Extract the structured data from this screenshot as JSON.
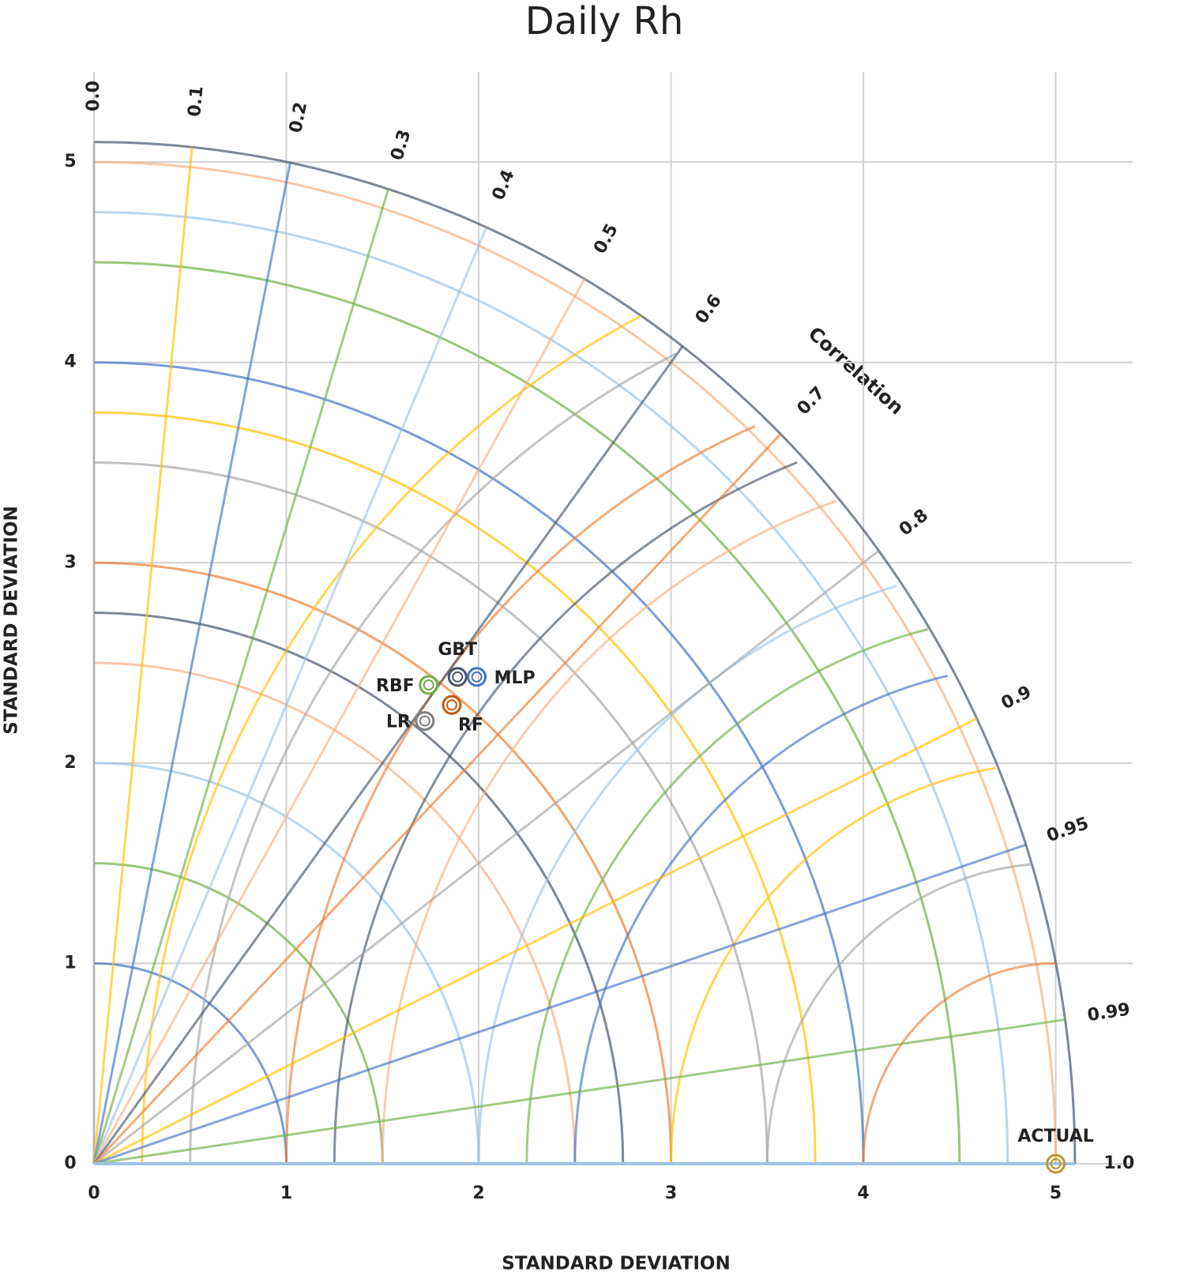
{
  "chart_data": {
    "type": "taylor",
    "title": "Daily Rh",
    "x_label": "STANDARD DEVIATION",
    "y_label": "STANDARD DEVIATION",
    "correlation_label": "Correlation",
    "xlim": [
      0,
      5.4
    ],
    "ylim": [
      0,
      5.45
    ],
    "xticks": [
      0,
      1,
      2,
      3,
      4,
      5
    ],
    "yticks": [
      0,
      1,
      2,
      3,
      4,
      5
    ],
    "grid": true,
    "correlation_ticks": [
      {
        "value": 0,
        "label": "0.0"
      },
      0.1,
      0.2,
      0.3,
      0.4,
      0.5,
      0.6,
      0.7,
      0.8,
      0.9,
      0.95,
      0.99,
      {
        "value": 1,
        "label": "1.0"
      }
    ],
    "std_arcs": [
      1,
      1.5,
      2,
      2.5,
      2.75,
      3,
      3.5,
      3.75,
      4,
      4.5,
      4.75,
      5,
      5.1
    ],
    "rmsd_arcs": [
      1,
      1.5,
      2,
      2.5,
      2.75,
      3,
      3.5,
      3.75,
      4,
      4.5,
      4.75
    ],
    "palette": [
      "#ed7d31",
      "#a5a5a5",
      "#ffc000",
      "#4472c4",
      "#70ad47",
      "#9dc3e6",
      "#f4b183",
      "#44546a"
    ],
    "points": [
      {
        "name": "ACTUAL",
        "x": 5.0,
        "y": 0,
        "color": "#b8962e",
        "label_position": "above"
      },
      {
        "name": "GBT",
        "x": 1.89,
        "y": 2.43,
        "color": "#44546a",
        "label_position": "above"
      },
      {
        "name": "MLP",
        "x": 1.99,
        "y": 2.43,
        "color": "#4472c4",
        "label_position": "right"
      },
      {
        "name": "RBF",
        "x": 1.74,
        "y": 2.39,
        "color": "#70ad47",
        "label_position": "left"
      },
      {
        "name": "RF",
        "x": 1.86,
        "y": 2.29,
        "color": "#c55a11",
        "label_position": "below"
      },
      {
        "name": "LR",
        "x": 1.72,
        "y": 2.21,
        "color": "#7f7f7f",
        "label_position": "left"
      }
    ]
  }
}
